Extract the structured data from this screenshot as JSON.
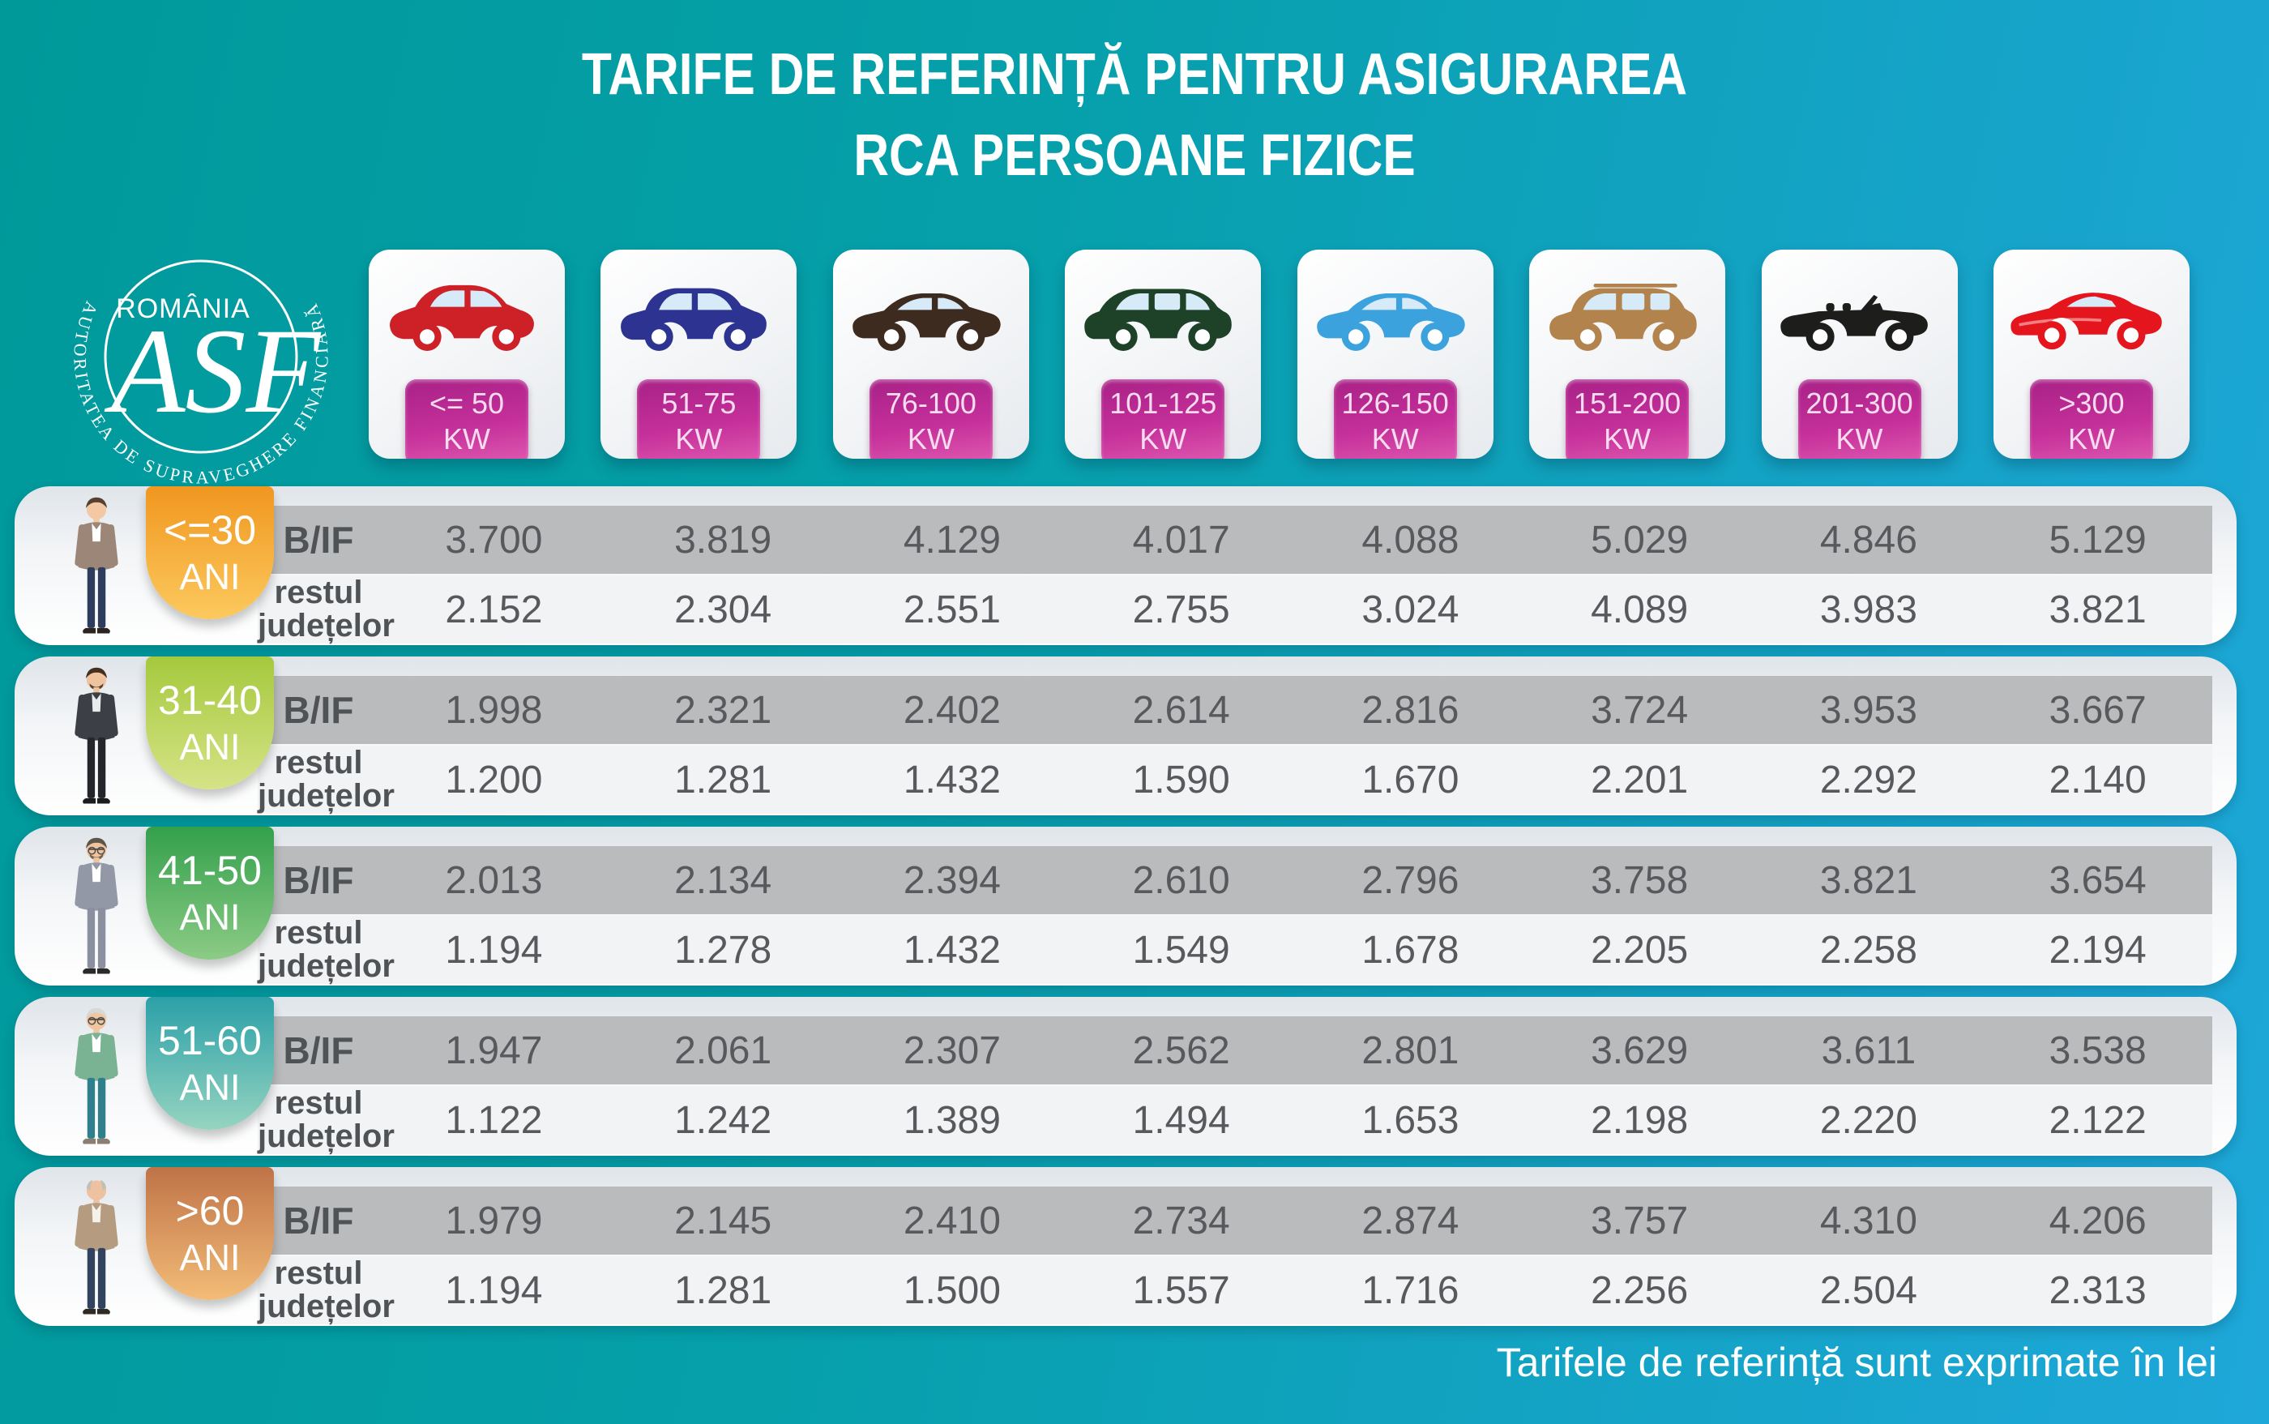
{
  "title": {
    "line1": "TARIFE DE REFERINȚĂ PENTRU ASIGURAREA",
    "line2": "RCA PERSOANE FIZICE"
  },
  "logo": {
    "country": "ROMÂNIA",
    "monogram": "ASF",
    "authority": "AUTORITATEA DE SUPRAVEGHERE FINANCIARĂ"
  },
  "power_classes": [
    {
      "range": "<= 50",
      "unit": "KW",
      "car": "city",
      "color": "#cd2027"
    },
    {
      "range": "51-75",
      "unit": "KW",
      "car": "crossover",
      "color": "#2c3391"
    },
    {
      "range": "76-100",
      "unit": "KW",
      "car": "sedan",
      "color": "#3d2b1f"
    },
    {
      "range": "101-125",
      "unit": "KW",
      "car": "minivan",
      "color": "#1d4228"
    },
    {
      "range": "126-150",
      "unit": "KW",
      "car": "sedan",
      "color": "#3ba2dd"
    },
    {
      "range": "151-200",
      "unit": "KW",
      "car": "suv",
      "color": "#b3834e"
    },
    {
      "range": "201-300",
      "unit": "KW",
      "car": "convertible",
      "color": "#1d1d1b"
    },
    {
      "range": ">300",
      "unit": "KW",
      "car": "sports",
      "color": "#e5151d"
    }
  ],
  "row_labels": {
    "bif": "B/IF",
    "rest_line1": "restul",
    "rest_line2": "județelor",
    "age_unit": "ANI"
  },
  "age_groups": [
    {
      "age": "<=30",
      "badge": [
        "#f0971f",
        "#fcc95e"
      ],
      "person": {
        "skin": "#f2c9a4",
        "hair": "#57402e",
        "top": "#9b8678",
        "shirt": "#ffffff",
        "pants": "#2e3d5e",
        "shoes": "#2c2420",
        "glasses": false,
        "beard": false,
        "bald": false
      },
      "bif": [
        "3.700",
        "3.819",
        "4.129",
        "4.017",
        "4.088",
        "5.029",
        "4.846",
        "5.129"
      ],
      "rest": [
        "2.152",
        "2.304",
        "2.551",
        "2.755",
        "3.024",
        "4.089",
        "3.983",
        "3.821"
      ]
    },
    {
      "age": "31-40",
      "badge": [
        "#a5c93d",
        "#d6e387"
      ],
      "person": {
        "skin": "#efc39e",
        "hair": "#43301f",
        "top": "#3c4046",
        "shirt": "#e8ebee",
        "pants": "#24262b",
        "shoes": "#1c1c1c",
        "glasses": false,
        "beard": true,
        "bald": false
      },
      "bif": [
        "1.998",
        "2.321",
        "2.402",
        "2.614",
        "2.816",
        "3.724",
        "3.953",
        "3.667"
      ],
      "rest": [
        "1.200",
        "1.281",
        "1.432",
        "1.590",
        "1.670",
        "2.201",
        "2.292",
        "2.140"
      ]
    },
    {
      "age": "41-50",
      "badge": [
        "#33a04c",
        "#8ccb86"
      ],
      "person": {
        "skin": "#efc39e",
        "hair": "#5e5648",
        "top": "#9298a6",
        "shirt": "#ffffff",
        "pants": "#8a90a0",
        "shoes": "#2a2a2a",
        "glasses": true,
        "beard": true,
        "bald": false
      },
      "bif": [
        "2.013",
        "2.134",
        "2.394",
        "2.610",
        "2.796",
        "3.758",
        "3.821",
        "3.654"
      ],
      "rest": [
        "1.194",
        "1.278",
        "1.432",
        "1.549",
        "1.678",
        "2.205",
        "2.258",
        "2.194"
      ]
    },
    {
      "age": "51-60",
      "badge": [
        "#2ba0a8",
        "#96d4c0"
      ],
      "person": {
        "skin": "#efc6a0",
        "hair": "#d8d8d6",
        "top": "#79b394",
        "shirt": "#ffffff",
        "pants": "#2f7f8d",
        "shoes": "#8a7f72",
        "glasses": true,
        "beard": false,
        "bald": false
      },
      "bif": [
        "1.947",
        "2.061",
        "2.307",
        "2.562",
        "2.801",
        "3.629",
        "3.611",
        "3.538"
      ],
      "rest": [
        "1.122",
        "1.242",
        "1.389",
        "1.494",
        "1.653",
        "2.198",
        "2.220",
        "2.122"
      ]
    },
    {
      "age": ">60",
      "badge": [
        "#bf7347",
        "#f3bc77"
      ],
      "person": {
        "skin": "#eec2a0",
        "hair": "#c2beb8",
        "top": "#b59b80",
        "shirt": "#f5f2ea",
        "pants": "#32435f",
        "shoes": "#2f2a24",
        "glasses": false,
        "beard": false,
        "bald": true
      },
      "bif": [
        "1.979",
        "2.145",
        "2.410",
        "2.734",
        "2.874",
        "3.757",
        "4.310",
        "4.206"
      ],
      "rest": [
        "1.194",
        "1.281",
        "1.500",
        "1.557",
        "1.716",
        "2.256",
        "2.504",
        "2.313"
      ]
    }
  ],
  "footer": {
    "note": "Tarifele de referință sunt exprimate în lei"
  },
  "chart_data": {
    "type": "table",
    "title": "TARIFE DE REFERINȚĂ PENTRU ASIGURAREA RCA PERSOANE FIZICE",
    "unit": "lei",
    "columns_kw": [
      "<= 50 KW",
      "51-75 KW",
      "76-100 KW",
      "101-125 KW",
      "126-150 KW",
      "151-200 KW",
      "201-300 KW",
      ">300 KW"
    ],
    "rows": [
      {
        "age": "<=30 ANI",
        "zone": "B/IF",
        "values": [
          3700,
          3819,
          4129,
          4017,
          4088,
          5029,
          4846,
          5129
        ]
      },
      {
        "age": "<=30 ANI",
        "zone": "restul județelor",
        "values": [
          2152,
          2304,
          2551,
          2755,
          3024,
          4089,
          3983,
          3821
        ]
      },
      {
        "age": "31-40 ANI",
        "zone": "B/IF",
        "values": [
          1998,
          2321,
          2402,
          2614,
          2816,
          3724,
          3953,
          3667
        ]
      },
      {
        "age": "31-40 ANI",
        "zone": "restul județelor",
        "values": [
          1200,
          1281,
          1432,
          1590,
          1670,
          2201,
          2292,
          2140
        ]
      },
      {
        "age": "41-50 ANI",
        "zone": "B/IF",
        "values": [
          2013,
          2134,
          2394,
          2610,
          2796,
          3758,
          3821,
          3654
        ]
      },
      {
        "age": "41-50 ANI",
        "zone": "restul județelor",
        "values": [
          1194,
          1278,
          1432,
          1549,
          1678,
          2205,
          2258,
          2194
        ]
      },
      {
        "age": "51-60 ANI",
        "zone": "B/IF",
        "values": [
          1947,
          2061,
          2307,
          2562,
          2801,
          3629,
          3611,
          3538
        ]
      },
      {
        "age": "51-60 ANI",
        "zone": "restul județelor",
        "values": [
          1122,
          1242,
          1389,
          1494,
          1653,
          2198,
          2220,
          2122
        ]
      },
      {
        "age": ">60 ANI",
        "zone": "B/IF",
        "values": [
          1979,
          2145,
          2410,
          2734,
          2874,
          3757,
          4310,
          4206
        ]
      },
      {
        "age": ">60 ANI",
        "zone": "restul județelor",
        "values": [
          1194,
          1281,
          1500,
          1557,
          1716,
          2256,
          2504,
          2313
        ]
      }
    ],
    "note": "Tarifele de referință sunt exprimate în lei"
  }
}
